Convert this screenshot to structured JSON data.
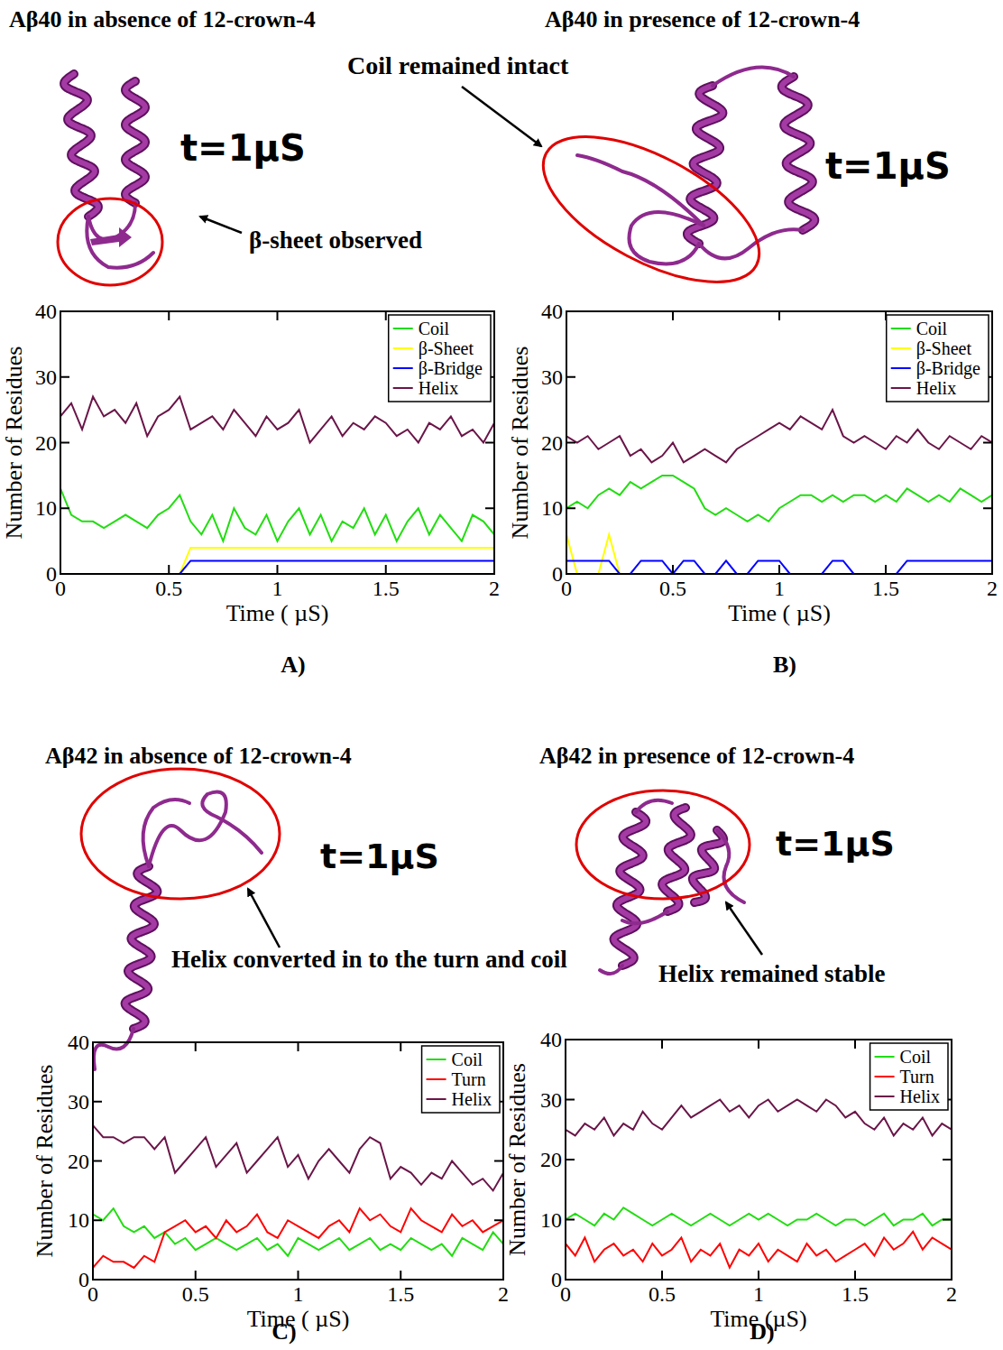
{
  "chart_data": [
    {
      "type": "line",
      "title": "Aβ40 in absence of 12-crown-4",
      "panel_label": "A)",
      "annotations": [
        "t=1μS",
        "β-sheet observed"
      ],
      "x_label": "Time ( µS)",
      "y_label": "Number of Residues",
      "xlim": [
        0,
        2
      ],
      "xticks": [
        0,
        0.5,
        1,
        1.5,
        2
      ],
      "ylim": [
        0,
        40
      ],
      "yticks": [
        0,
        10,
        20,
        30,
        40
      ],
      "legend": "upper right",
      "x": [
        0,
        0.05,
        0.1,
        0.15,
        0.2,
        0.25,
        0.3,
        0.35,
        0.4,
        0.45,
        0.5,
        0.55,
        0.6,
        0.65,
        0.7,
        0.75,
        0.8,
        0.85,
        0.9,
        0.95,
        1,
        1.05,
        1.1,
        1.15,
        1.2,
        1.25,
        1.3,
        1.35,
        1.4,
        1.45,
        1.5,
        1.55,
        1.6,
        1.65,
        1.7,
        1.75,
        1.8,
        1.85,
        1.9,
        1.95,
        2
      ],
      "series": [
        {
          "name": "Coil",
          "color": "#22dd11",
          "values": [
            13,
            9,
            8,
            8,
            7,
            8,
            9,
            8,
            7,
            9,
            10,
            12,
            8,
            6,
            9,
            5,
            10,
            7,
            6,
            9,
            5,
            8,
            10,
            6,
            9,
            5,
            8,
            7,
            10,
            6,
            9,
            5,
            8,
            10,
            6,
            9,
            7,
            5,
            9,
            8,
            6
          ]
        },
        {
          "name": "β-Sheet",
          "color": "#ffff00",
          "values": [
            0,
            0,
            0,
            0,
            0,
            0,
            0,
            0,
            0,
            0,
            0,
            0,
            4,
            4,
            4,
            4,
            4,
            4,
            4,
            4,
            4,
            4,
            4,
            4,
            4,
            4,
            4,
            4,
            4,
            4,
            4,
            4,
            4,
            4,
            4,
            4,
            4,
            4,
            4,
            4,
            4
          ]
        },
        {
          "name": "β-Bridge",
          "color": "#0000ff",
          "values": [
            0,
            0,
            0,
            0,
            0,
            0,
            0,
            0,
            0,
            0,
            0,
            0,
            2,
            2,
            2,
            2,
            2,
            2,
            2,
            2,
            2,
            2,
            2,
            2,
            2,
            2,
            2,
            2,
            2,
            2,
            2,
            2,
            2,
            2,
            2,
            2,
            2,
            2,
            2,
            2,
            2
          ]
        },
        {
          "name": "Helix",
          "color": "#6a1548",
          "values": [
            24,
            26,
            22,
            27,
            24,
            25,
            23,
            26,
            21,
            24,
            25,
            27,
            22,
            23,
            24,
            22,
            25,
            23,
            21,
            24,
            22,
            23,
            25,
            20,
            22,
            24,
            21,
            23,
            22,
            24,
            23,
            21,
            22,
            20,
            23,
            22,
            24,
            21,
            22,
            20,
            23
          ]
        }
      ]
    },
    {
      "type": "line",
      "title": "Aβ40 in presence of 12-crown-4",
      "panel_label": "B)",
      "annotations": [
        "t=1μS",
        "Coil remained intact"
      ],
      "x_label": "Time ( µS)",
      "y_label": "Number of Residues",
      "xlim": [
        0,
        2
      ],
      "xticks": [
        0,
        0.5,
        1,
        1.5,
        2
      ],
      "ylim": [
        0,
        40
      ],
      "yticks": [
        0,
        10,
        20,
        30,
        40
      ],
      "legend": "upper right",
      "x": [
        0,
        0.05,
        0.1,
        0.15,
        0.2,
        0.25,
        0.3,
        0.35,
        0.4,
        0.45,
        0.5,
        0.55,
        0.6,
        0.65,
        0.7,
        0.75,
        0.8,
        0.85,
        0.9,
        0.95,
        1,
        1.05,
        1.1,
        1.15,
        1.2,
        1.25,
        1.3,
        1.35,
        1.4,
        1.45,
        1.5,
        1.55,
        1.6,
        1.65,
        1.7,
        1.75,
        1.8,
        1.85,
        1.9,
        1.95,
        2
      ],
      "series": [
        {
          "name": "Coil",
          "color": "#22dd11",
          "values": [
            10,
            11,
            10,
            12,
            13,
            12,
            14,
            13,
            14,
            15,
            15,
            14,
            13,
            10,
            9,
            10,
            9,
            8,
            9,
            8,
            10,
            11,
            12,
            12,
            11,
            12,
            11,
            12,
            12,
            11,
            12,
            11,
            13,
            12,
            11,
            12,
            11,
            13,
            12,
            11,
            12
          ]
        },
        {
          "name": "β-Sheet",
          "color": "#ffff00",
          "values": [
            6,
            0,
            0,
            0,
            6,
            0,
            0,
            0,
            0,
            0,
            0,
            0,
            0,
            0,
            0,
            0,
            0,
            0,
            0,
            0,
            0,
            0,
            0,
            0,
            0,
            0,
            0,
            0,
            0,
            0,
            0,
            0,
            0,
            0,
            0,
            0,
            0,
            0,
            0,
            0,
            0
          ]
        },
        {
          "name": "β-Bridge",
          "color": "#0000ff",
          "values": [
            2,
            2,
            2,
            2,
            2,
            0,
            0,
            2,
            2,
            2,
            0,
            2,
            2,
            0,
            0,
            2,
            0,
            0,
            2,
            2,
            2,
            0,
            0,
            0,
            0,
            2,
            2,
            0,
            0,
            0,
            0,
            0,
            2,
            2,
            2,
            2,
            2,
            2,
            2,
            2,
            2
          ]
        },
        {
          "name": "Helix",
          "color": "#6a1548",
          "values": [
            21,
            20,
            21,
            19,
            20,
            21,
            18,
            19,
            17,
            18,
            20,
            17,
            18,
            19,
            18,
            17,
            19,
            20,
            21,
            22,
            23,
            22,
            24,
            23,
            22,
            25,
            21,
            20,
            21,
            20,
            19,
            21,
            20,
            22,
            20,
            19,
            21,
            20,
            19,
            21,
            20
          ]
        }
      ]
    },
    {
      "type": "line",
      "title": "Aβ42 in absence of 12-crown-4",
      "panel_label": "C)",
      "annotations": [
        "t=1μS",
        "Helix converted in to the turn and coil"
      ],
      "x_label": "Time ( µS)",
      "y_label": "Number of Residues",
      "xlim": [
        0,
        2
      ],
      "xticks": [
        0,
        0.5,
        1,
        1.5,
        2
      ],
      "ylim": [
        0,
        40
      ],
      "yticks": [
        0,
        10,
        20,
        30,
        40
      ],
      "legend": "upper right",
      "x": [
        0,
        0.05,
        0.1,
        0.15,
        0.2,
        0.25,
        0.3,
        0.35,
        0.4,
        0.45,
        0.5,
        0.55,
        0.6,
        0.65,
        0.7,
        0.75,
        0.8,
        0.85,
        0.9,
        0.95,
        1,
        1.05,
        1.1,
        1.15,
        1.2,
        1.25,
        1.3,
        1.35,
        1.4,
        1.45,
        1.5,
        1.55,
        1.6,
        1.65,
        1.7,
        1.75,
        1.8,
        1.85,
        1.9,
        1.95,
        2
      ],
      "series": [
        {
          "name": "Coil",
          "color": "#22dd11",
          "values": [
            11,
            10,
            12,
            9,
            8,
            9,
            7,
            8,
            6,
            7,
            5,
            6,
            7,
            6,
            5,
            6,
            7,
            5,
            6,
            4,
            7,
            6,
            5,
            6,
            7,
            5,
            6,
            7,
            5,
            6,
            5,
            7,
            6,
            5,
            6,
            4,
            7,
            6,
            5,
            8,
            6
          ]
        },
        {
          "name": "Turn",
          "color": "#ff0000",
          "values": [
            2,
            4,
            3,
            3,
            2,
            4,
            3,
            8,
            9,
            10,
            8,
            9,
            7,
            10,
            8,
            9,
            11,
            8,
            7,
            10,
            9,
            8,
            7,
            9,
            10,
            8,
            12,
            10,
            11,
            9,
            8,
            12,
            10,
            9,
            8,
            11,
            9,
            10,
            8,
            9,
            10
          ]
        },
        {
          "name": "Helix",
          "color": "#6a1548",
          "values": [
            26,
            24,
            24,
            23,
            24,
            24,
            22,
            24,
            18,
            20,
            22,
            24,
            19,
            21,
            23,
            18,
            20,
            22,
            24,
            19,
            21,
            17,
            20,
            22,
            20,
            18,
            22,
            24,
            23,
            17,
            19,
            18,
            16,
            18,
            17,
            20,
            18,
            16,
            17,
            15,
            18
          ]
        }
      ]
    },
    {
      "type": "line",
      "title": "Aβ42 in presence of 12-crown-4",
      "panel_label": "D)",
      "annotations": [
        "t=1μS",
        "Helix remained stable"
      ],
      "x_label": "Time (µS)",
      "y_label": "Number of Residues",
      "xlim": [
        0,
        2
      ],
      "xticks": [
        0,
        0.5,
        1,
        1.5,
        2
      ],
      "ylim": [
        0,
        40
      ],
      "yticks": [
        0,
        10,
        20,
        30,
        40
      ],
      "legend": "upper right",
      "x": [
        0,
        0.05,
        0.1,
        0.15,
        0.2,
        0.25,
        0.3,
        0.35,
        0.4,
        0.45,
        0.5,
        0.55,
        0.6,
        0.65,
        0.7,
        0.75,
        0.8,
        0.85,
        0.9,
        0.95,
        1,
        1.05,
        1.1,
        1.15,
        1.2,
        1.25,
        1.3,
        1.35,
        1.4,
        1.45,
        1.5,
        1.55,
        1.6,
        1.65,
        1.7,
        1.75,
        1.8,
        1.85,
        1.9,
        1.95,
        2
      ],
      "series": [
        {
          "name": "Coil",
          "color": "#22dd11",
          "values": [
            10,
            11,
            10,
            9,
            11,
            10,
            12,
            11,
            10,
            9,
            10,
            11,
            10,
            9,
            10,
            11,
            10,
            9,
            10,
            11,
            10,
            11,
            10,
            9,
            10,
            10,
            11,
            10,
            9,
            10,
            10,
            9,
            10,
            11,
            9,
            10,
            10,
            11,
            9,
            10,
            10
          ]
        },
        {
          "name": "Turn",
          "color": "#ff0000",
          "values": [
            6,
            4,
            7,
            3,
            5,
            6,
            4,
            5,
            3,
            6,
            4,
            5,
            7,
            3,
            5,
            4,
            6,
            2,
            5,
            4,
            6,
            3,
            5,
            4,
            3,
            6,
            4,
            5,
            3,
            4,
            5,
            6,
            4,
            7,
            5,
            6,
            8,
            5,
            7,
            6,
            5
          ]
        },
        {
          "name": "Helix",
          "color": "#6a1548",
          "values": [
            25,
            24,
            26,
            25,
            27,
            24,
            26,
            25,
            28,
            26,
            25,
            27,
            29,
            27,
            28,
            29,
            30,
            28,
            29,
            27,
            29,
            30,
            28,
            29,
            30,
            29,
            28,
            30,
            29,
            27,
            28,
            26,
            25,
            27,
            24,
            26,
            25,
            27,
            24,
            26,
            25
          ]
        }
      ]
    }
  ]
}
